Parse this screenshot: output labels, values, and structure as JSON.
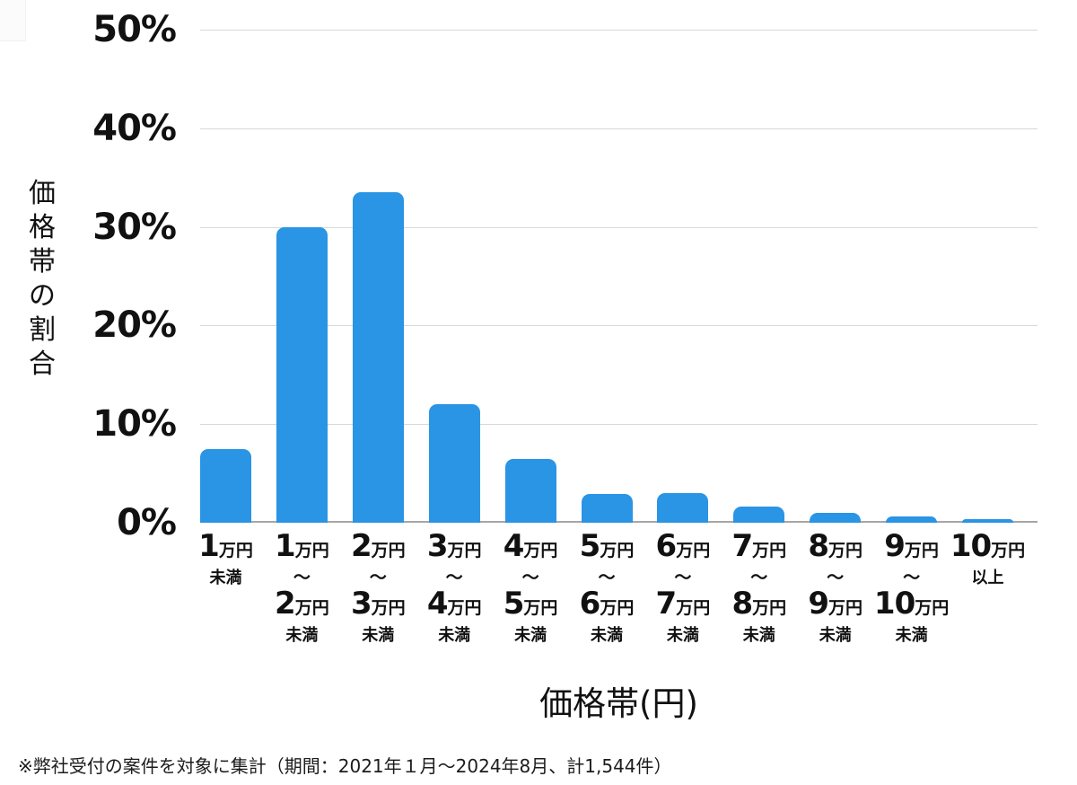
{
  "chart_data": {
    "type": "bar",
    "title": "",
    "xlabel": "価格帯(円)",
    "ylabel": "価格帯の割合",
    "ylabel_orientation": "vertical",
    "ylim": [
      0,
      50
    ],
    "ytick_values": [
      50,
      40,
      30,
      20,
      10,
      0
    ],
    "ytick_labels": [
      "50%",
      "40%",
      "30%",
      "20%",
      "10%",
      "0%"
    ],
    "grid": "horizontal",
    "legend": "none",
    "bar_color": "#2a94e5",
    "categories": [
      "1万円未満",
      "1万円〜2万円未満",
      "2万円〜3万円未満",
      "3万円〜4万円未満",
      "4万円〜5万円未満",
      "5万円〜6万円未満",
      "6万円〜7万円未満",
      "7万円〜8万円未満",
      "8万円〜9万円未満",
      "9万円〜10万円未満",
      "10万円以上"
    ],
    "values": [
      7.5,
      30,
      33.5,
      12,
      6.5,
      2.9,
      3,
      1.6,
      1,
      0.6,
      0.4
    ],
    "x_tick_structure": [
      {
        "from": "1",
        "to": null,
        "suffix": "未満"
      },
      {
        "from": "1",
        "to": "2",
        "suffix": "未満"
      },
      {
        "from": "2",
        "to": "3",
        "suffix": "未満"
      },
      {
        "from": "3",
        "to": "4",
        "suffix": "未満"
      },
      {
        "from": "4",
        "to": "5",
        "suffix": "未満"
      },
      {
        "from": "5",
        "to": "6",
        "suffix": "未満"
      },
      {
        "from": "6",
        "to": "7",
        "suffix": "未満"
      },
      {
        "from": "7",
        "to": "8",
        "suffix": "未満"
      },
      {
        "from": "8",
        "to": "9",
        "suffix": "未満"
      },
      {
        "from": "9",
        "to": "10",
        "suffix": "未満"
      },
      {
        "from": "10",
        "to": null,
        "suffix": "以上"
      }
    ],
    "unit_label": "万円",
    "range_connector": "〜",
    "footnote": "※弊社受付の案件を対象に集計（期間：2021年１月～2024年8月、計1,544件）"
  },
  "colors": {
    "bar": "#2a94e5",
    "gridline": "#d8d8d8",
    "baseline": "#a6a6a6",
    "text": "#111111",
    "background": "#ffffff"
  }
}
